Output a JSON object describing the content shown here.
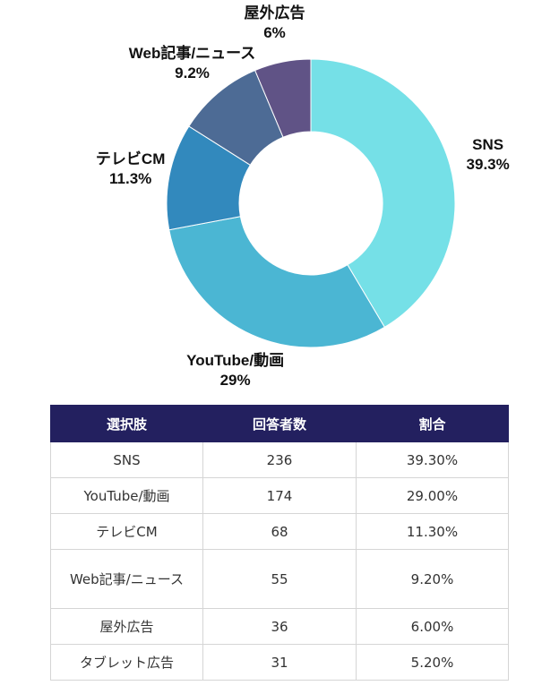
{
  "chart_data": {
    "type": "pie",
    "variant": "donut",
    "title": "",
    "categories": [
      "SNS",
      "YouTube/動画",
      "テレビCM",
      "Web記事/ニュース",
      "屋外広告"
    ],
    "values": [
      39.3,
      29,
      11.3,
      9.2,
      6
    ],
    "labels": [
      "39.3%",
      "29%",
      "11.3%",
      "9.2%",
      "6%"
    ],
    "colors": [
      "#75e0e7",
      "#4bb6d3",
      "#3289bd",
      "#4d6b95",
      "#605386",
      "#7c4685"
    ],
    "legend": "none"
  },
  "table": {
    "headers": [
      "選択肢",
      "回答者数",
      "割合"
    ],
    "rows": [
      [
        "SNS",
        "236",
        "39.30%"
      ],
      [
        "YouTube/動画",
        "174",
        "29.00%"
      ],
      [
        "テレビCM",
        "68",
        "11.30%"
      ],
      [
        "Web記事/ニュース",
        "55",
        "9.20%"
      ],
      [
        "屋外広告",
        "36",
        "6.00%"
      ],
      [
        "タブレット広告",
        "31",
        "5.20%"
      ]
    ]
  }
}
